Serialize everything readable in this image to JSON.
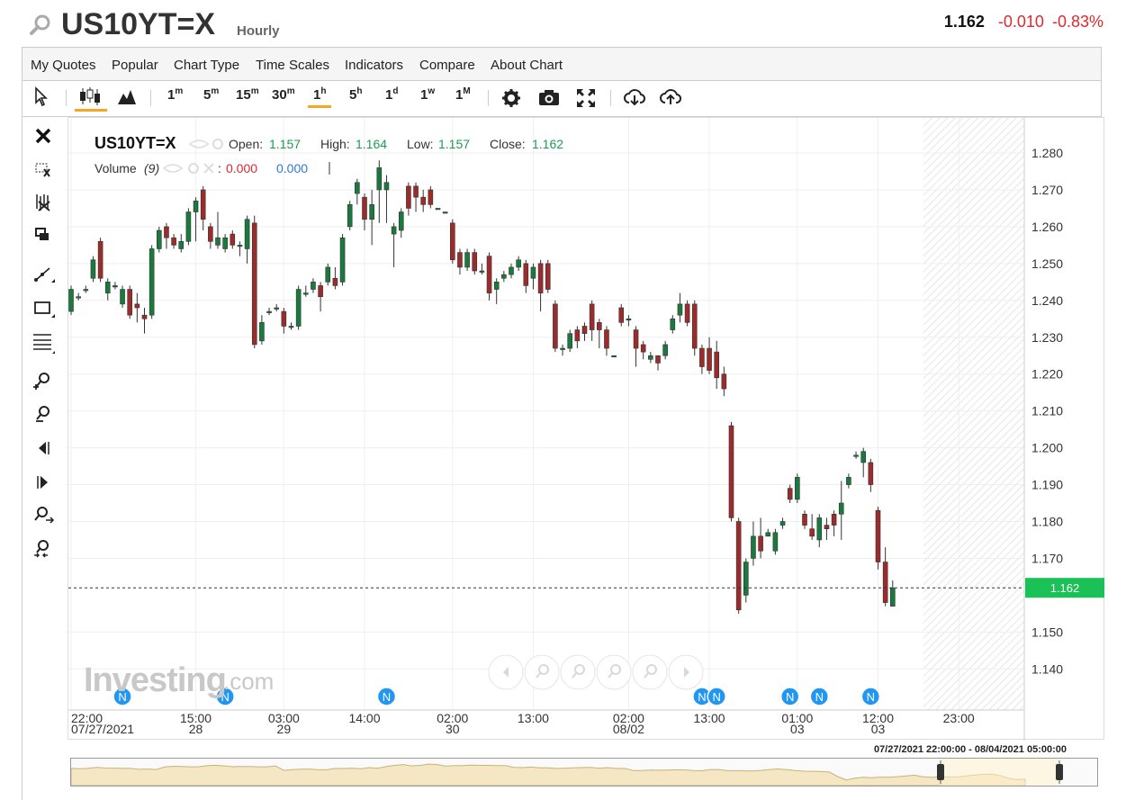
{
  "header": {
    "symbol": "US10YT=X",
    "interval": "Hourly",
    "last": "1.162",
    "change": "-0.010",
    "change_pct": "-0.83%"
  },
  "menu": [
    "My Quotes",
    "Popular",
    "Chart Type",
    "Time Scales",
    "Indicators",
    "Compare",
    "About Chart"
  ],
  "timeframes": [
    {
      "num": "1",
      "unit": "m"
    },
    {
      "num": "5",
      "unit": "m"
    },
    {
      "num": "15",
      "unit": "m"
    },
    {
      "num": "30",
      "unit": "m"
    },
    {
      "num": "1",
      "unit": "h",
      "active": true
    },
    {
      "num": "5",
      "unit": "h"
    },
    {
      "num": "1",
      "unit": "d"
    },
    {
      "num": "1",
      "unit": "w"
    },
    {
      "num": "1",
      "unit": "M"
    }
  ],
  "legend": {
    "symbol": "US10YT=X",
    "open_label": "Open:",
    "open": "1.157",
    "high_label": "High:",
    "high": "1.164",
    "low_label": "Low:",
    "low": "1.157",
    "close_label": "Close:",
    "close": "1.162",
    "volume_label": "Volume",
    "volume_period": "(9)",
    "volume_v1": "0.000",
    "volume_v2": "0.000"
  },
  "watermark": {
    "brand": "Investing",
    "suffix": ".com"
  },
  "range_label": "07/27/2021 22:00:00 - 08/04/2021 05:00:00",
  "colors": {
    "up": "#1a7a3d",
    "down": "#9c2b2b",
    "last_price_tag": "#19c157",
    "news": "#2196f3"
  },
  "chart_data": {
    "type": "candlestick",
    "ylim": [
      1.132,
      1.29
    ],
    "y_ticks": [
      "1.280",
      "1.270",
      "1.260",
      "1.250",
      "1.240",
      "1.230",
      "1.220",
      "1.210",
      "1.200",
      "1.190",
      "1.180",
      "1.170",
      "1.150",
      "1.140"
    ],
    "y_tick_values": [
      1.28,
      1.27,
      1.26,
      1.25,
      1.24,
      1.23,
      1.22,
      1.21,
      1.2,
      1.19,
      1.18,
      1.17,
      1.15,
      1.14
    ],
    "x_ticks": [
      {
        "time": "22:00",
        "date": "07/27/2021",
        "index": 0
      },
      {
        "time": "15:00",
        "date": "28",
        "index": 17
      },
      {
        "time": "03:00",
        "date": "29",
        "index": 29
      },
      {
        "time": "14:00",
        "date": "",
        "index": 40
      },
      {
        "time": "02:00",
        "date": "30",
        "index": 52
      },
      {
        "time": "13:00",
        "date": "",
        "index": 63
      },
      {
        "time": "02:00",
        "date": "08/02",
        "index": 76
      },
      {
        "time": "13:00",
        "date": "",
        "index": 87
      },
      {
        "time": "01:00",
        "date": "03",
        "index": 99
      },
      {
        "time": "12:00",
        "date": "03",
        "index": 110
      },
      {
        "time": "23:00",
        "date": "",
        "index": 121
      }
    ],
    "last_price": 1.162,
    "last_price_label": "1.162",
    "news_marker": "N",
    "news_indices": [
      7,
      21,
      43,
      86,
      88,
      98,
      102,
      109
    ],
    "candles": [
      [
        1.237,
        1.243,
        1.236,
        1.244
      ],
      [
        1.241,
        1.241,
        1.24,
        1.242
      ],
      [
        1.243,
        1.243,
        1.242,
        1.244
      ],
      [
        1.246,
        1.251,
        1.245,
        1.252
      ],
      [
        1.256,
        1.246,
        1.245,
        1.257
      ],
      [
        1.242,
        1.245,
        1.24,
        1.246
      ],
      [
        1.244,
        1.244,
        1.243,
        1.245
      ],
      [
        1.239,
        1.243,
        1.238,
        1.244
      ],
      [
        1.243,
        1.236,
        1.235,
        1.244
      ],
      [
        1.239,
        1.238,
        1.234,
        1.242
      ],
      [
        1.236,
        1.235,
        1.231,
        1.238
      ],
      [
        1.236,
        1.254,
        1.235,
        1.255
      ],
      [
        1.254,
        1.259,
        1.253,
        1.26
      ],
      [
        1.26,
        1.257,
        1.254,
        1.261
      ],
      [
        1.257,
        1.255,
        1.254,
        1.258
      ],
      [
        1.254,
        1.256,
        1.253,
        1.258
      ],
      [
        1.256,
        1.264,
        1.255,
        1.265
      ],
      [
        1.264,
        1.267,
        1.256,
        1.268
      ],
      [
        1.27,
        1.262,
        1.259,
        1.271
      ],
      [
        1.26,
        1.256,
        1.254,
        1.261
      ],
      [
        1.255,
        1.257,
        1.254,
        1.264
      ],
      [
        1.254,
        1.257,
        1.253,
        1.258
      ],
      [
        1.258,
        1.255,
        1.254,
        1.259
      ],
      [
        1.255,
        1.255,
        1.252,
        1.256
      ],
      [
        1.254,
        1.262,
        1.25,
        1.263
      ],
      [
        1.261,
        1.228,
        1.227,
        1.263
      ],
      [
        1.229,
        1.234,
        1.228,
        1.236
      ],
      [
        1.237,
        1.237,
        1.236,
        1.238
      ],
      [
        1.238,
        1.238,
        1.237,
        1.239
      ],
      [
        1.237,
        1.233,
        1.231,
        1.238
      ],
      [
        1.233,
        1.233,
        1.232,
        1.234
      ],
      [
        1.233,
        1.243,
        1.232,
        1.244
      ],
      [
        1.242,
        1.242,
        1.241,
        1.244
      ],
      [
        1.243,
        1.245,
        1.242,
        1.246
      ],
      [
        1.244,
        1.241,
        1.237,
        1.245
      ],
      [
        1.245,
        1.249,
        1.244,
        1.25
      ],
      [
        1.246,
        1.244,
        1.243,
        1.249
      ],
      [
        1.245,
        1.257,
        1.244,
        1.258
      ],
      [
        1.26,
        1.266,
        1.259,
        1.267
      ],
      [
        1.269,
        1.272,
        1.266,
        1.273
      ],
      [
        1.268,
        1.262,
        1.259,
        1.269
      ],
      [
        1.262,
        1.266,
        1.255,
        1.27
      ],
      [
        1.27,
        1.276,
        1.261,
        1.278
      ],
      [
        1.27,
        1.272,
        1.261,
        1.274
      ],
      [
        1.258,
        1.26,
        1.249,
        1.261
      ],
      [
        1.259,
        1.264,
        1.257,
        1.265
      ],
      [
        1.271,
        1.265,
        1.263,
        1.272
      ],
      [
        1.271,
        1.268,
        1.264,
        1.272
      ],
      [
        1.268,
        1.266,
        1.264,
        1.27
      ],
      [
        1.27,
        1.266,
        1.265,
        1.271
      ],
      [
        1.265,
        1.265,
        1.265,
        1.265
      ],
      [
        1.264,
        1.264,
        1.264,
        1.264
      ],
      [
        1.261,
        1.251,
        1.25,
        1.262
      ],
      [
        1.253,
        1.249,
        1.247,
        1.254
      ],
      [
        1.249,
        1.253,
        1.248,
        1.254
      ],
      [
        1.253,
        1.248,
        1.247,
        1.254
      ],
      [
        1.248,
        1.248,
        1.247,
        1.25
      ],
      [
        1.252,
        1.242,
        1.24,
        1.253
      ],
      [
        1.243,
        1.245,
        1.239,
        1.246
      ],
      [
        1.246,
        1.247,
        1.245,
        1.248
      ],
      [
        1.247,
        1.249,
        1.246,
        1.25
      ],
      [
        1.249,
        1.251,
        1.248,
        1.252
      ],
      [
        1.25,
        1.244,
        1.242,
        1.251
      ],
      [
        1.246,
        1.249,
        1.243,
        1.25
      ],
      [
        1.25,
        1.242,
        1.237,
        1.251
      ],
      [
        1.25,
        1.243,
        1.242,
        1.251
      ],
      [
        1.239,
        1.227,
        1.226,
        1.24
      ],
      [
        1.227,
        1.227,
        1.225,
        1.228
      ],
      [
        1.227,
        1.231,
        1.226,
        1.232
      ],
      [
        1.232,
        1.229,
        1.227,
        1.233
      ],
      [
        1.233,
        1.231,
        1.229,
        1.234
      ],
      [
        1.239,
        1.232,
        1.229,
        1.24
      ],
      [
        1.234,
        1.232,
        1.227,
        1.235
      ],
      [
        1.232,
        1.227,
        1.225,
        1.233
      ],
      [
        1.225,
        1.225,
        1.225,
        1.225
      ],
      [
        1.238,
        1.234,
        1.233,
        1.239
      ],
      [
        1.235,
        1.235,
        1.233,
        1.236
      ],
      [
        1.232,
        1.227,
        1.222,
        1.233
      ],
      [
        1.228,
        1.226,
        1.224,
        1.229
      ],
      [
        1.224,
        1.225,
        1.223,
        1.226
      ],
      [
        1.225,
        1.223,
        1.221,
        1.225
      ],
      [
        1.225,
        1.228,
        1.224,
        1.229
      ],
      [
        1.232,
        1.235,
        1.231,
        1.236
      ],
      [
        1.236,
        1.239,
        1.234,
        1.242
      ],
      [
        1.239,
        1.234,
        1.233,
        1.24
      ],
      [
        1.239,
        1.227,
        1.225,
        1.24
      ],
      [
        1.227,
        1.222,
        1.22,
        1.228
      ],
      [
        1.227,
        1.221,
        1.22,
        1.23
      ],
      [
        1.226,
        1.219,
        1.216,
        1.229
      ],
      [
        1.22,
        1.216,
        1.214,
        1.222
      ],
      [
        1.206,
        1.181,
        1.18,
        1.207
      ],
      [
        1.18,
        1.156,
        1.155,
        1.181
      ],
      [
        1.16,
        1.169,
        1.158,
        1.17
      ],
      [
        1.17,
        1.176,
        1.168,
        1.18
      ],
      [
        1.176,
        1.172,
        1.17,
        1.181
      ],
      [
        1.176,
        1.177,
        1.176,
        1.178
      ],
      [
        1.172,
        1.177,
        1.171,
        1.178
      ],
      [
        1.179,
        1.18,
        1.178,
        1.181
      ],
      [
        1.189,
        1.186,
        1.185,
        1.19
      ],
      [
        1.186,
        1.192,
        1.185,
        1.193
      ],
      [
        1.182,
        1.179,
        1.178,
        1.183
      ],
      [
        1.178,
        1.176,
        1.175,
        1.182
      ],
      [
        1.175,
        1.181,
        1.173,
        1.182
      ],
      [
        1.179,
        1.178,
        1.175,
        1.181
      ],
      [
        1.182,
        1.179,
        1.176,
        1.183
      ],
      [
        1.182,
        1.185,
        1.175,
        1.191
      ],
      [
        1.19,
        1.192,
        1.189,
        1.193
      ],
      [
        1.198,
        1.198,
        1.197,
        1.199
      ],
      [
        1.196,
        1.199,
        1.192,
        1.2
      ],
      [
        1.196,
        1.19,
        1.188,
        1.197
      ],
      [
        1.183,
        1.169,
        1.167,
        1.184
      ],
      [
        1.169,
        1.158,
        1.157,
        1.173
      ],
      [
        1.157,
        1.162,
        1.157,
        1.164
      ]
    ]
  }
}
